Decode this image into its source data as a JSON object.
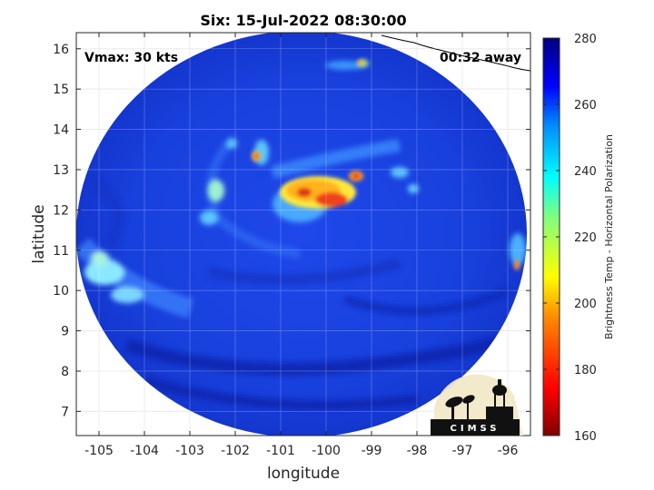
{
  "title": "Six: 15-Jul-2022 08:30:00",
  "annotations": {
    "vmax": "Vmax: 30 kts",
    "time_away": "00:32 away"
  },
  "axes": {
    "xlabel": "longitude",
    "ylabel": "latitude",
    "xlim": [
      -105.5,
      -95.5
    ],
    "ylim": [
      6.4,
      16.4
    ],
    "xticks": [
      -105,
      -104,
      -103,
      -102,
      -101,
      -100,
      -99,
      -98,
      -97,
      -96
    ],
    "yticks": [
      7,
      8,
      9,
      10,
      11,
      12,
      13,
      14,
      15,
      16
    ],
    "xtick_labels": [
      "-105",
      "-104",
      "-103",
      "-102",
      "-101",
      "-100",
      "-99",
      "-98",
      "-97",
      "-96"
    ],
    "ytick_labels": [
      "7",
      "8",
      "9",
      "10",
      "11",
      "12",
      "13",
      "14",
      "15",
      "16"
    ],
    "grid": true
  },
  "colorbar": {
    "label": "Brightness Temp - Horizontal Polarization",
    "range": [
      160,
      280
    ],
    "ticks": [
      160,
      180,
      200,
      220,
      240,
      260,
      280
    ],
    "tick_labels": [
      "160",
      "180",
      "200",
      "220",
      "240",
      "260",
      "280"
    ],
    "colormap": "jet"
  },
  "logo": {
    "text": "CIMSS"
  },
  "colors": {
    "background_tb": "#1a3fe0",
    "deep_blue": "#0f28b8",
    "warm": "#ffd21f",
    "hot": "#e01a14"
  }
}
